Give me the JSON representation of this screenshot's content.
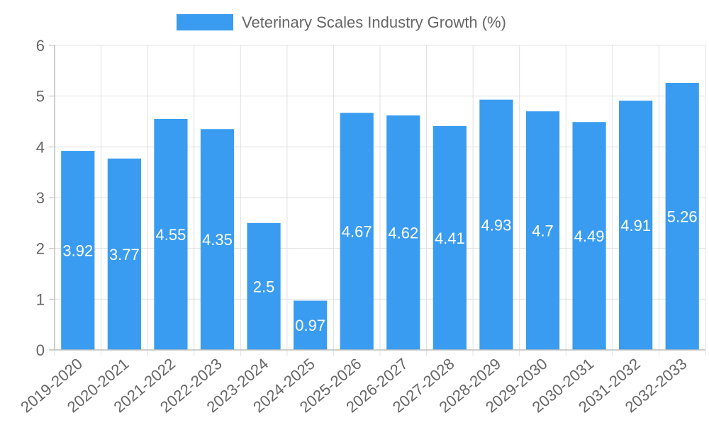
{
  "chart_data": {
    "type": "bar",
    "title": "",
    "xlabel": "",
    "ylabel": "",
    "categories": [
      "2019-2020",
      "2020-2021",
      "2021-2022",
      "2022-2023",
      "2023-2024",
      "2024-2025",
      "2025-2026",
      "2026-2027",
      "2027-2028",
      "2028-2029",
      "2029-2030",
      "2030-2031",
      "2031-2032",
      "2032-2033"
    ],
    "series": [
      {
        "name": "Veterinary Scales Industry Growth (%)",
        "values": [
          3.92,
          3.77,
          4.55,
          4.35,
          2.5,
          0.97,
          4.67,
          4.62,
          4.41,
          4.93,
          4.7,
          4.49,
          4.91,
          5.26
        ],
        "color": "#3a9cf0"
      }
    ],
    "ylim": [
      0,
      6
    ],
    "yticks": [
      0,
      1,
      2,
      3,
      4,
      5,
      6
    ],
    "grid": true,
    "legend_position": "top-center",
    "data_labels": [
      "3.92",
      "3.77",
      "4.55",
      "4.35",
      "2.5",
      "0.97",
      "4.67",
      "4.62",
      "4.41",
      "4.93",
      "4.7",
      "4.49",
      "4.91",
      "5.26"
    ]
  }
}
